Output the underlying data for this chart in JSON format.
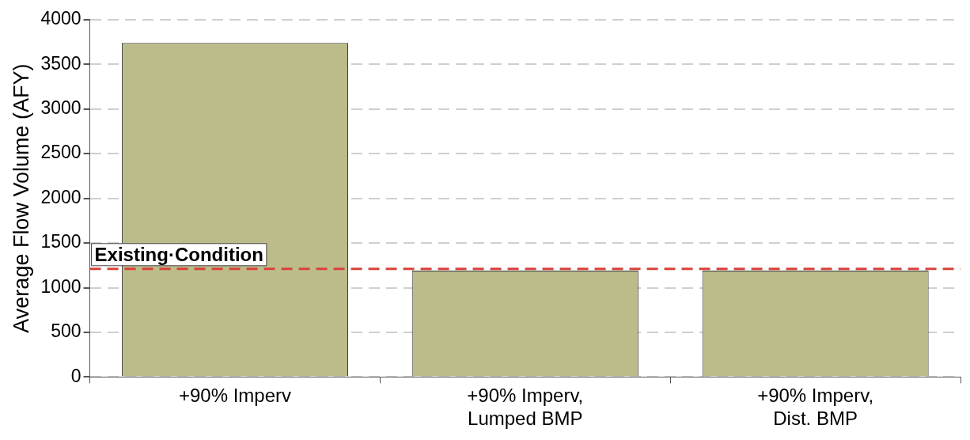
{
  "chart_data": {
    "type": "bar",
    "ylabel": "Average Flow Volume (AFY)",
    "categories": [
      "+90% Imperv",
      "+90% Imperv, Lumped BMP",
      "+90% Imperv, Dist. BMP"
    ],
    "values": [
      3740,
      1190,
      1190
    ],
    "color": "#bcbc8a",
    "ylim": [
      0,
      4000
    ],
    "yticks": [
      0,
      500,
      1000,
      1500,
      2000,
      2500,
      3000,
      3500,
      4000
    ],
    "grid": "y",
    "ref_lines": [
      {
        "axis": "y",
        "value": 1210,
        "label": "Existing·Condition",
        "color": "#d9423c",
        "line_style": "dashed"
      }
    ]
  }
}
